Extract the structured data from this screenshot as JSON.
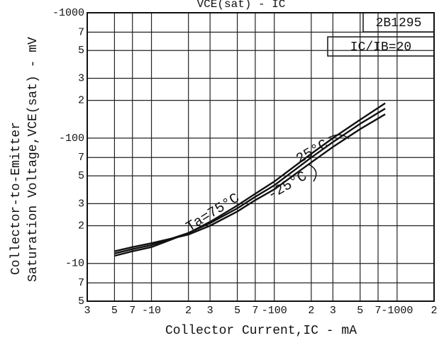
{
  "chart_data": {
    "type": "line",
    "title": "VCE(sat) - IC",
    "xlabel": "Collector Current,IC - mA",
    "ylabel": [
      "Collector-to-Emitter",
      "Saturation Voltage,VCE(sat) - mV"
    ],
    "annotations": [
      "2B1295",
      "IC/IB=20"
    ],
    "x": [
      5,
      7,
      10,
      20,
      30,
      50,
      70,
      100,
      200,
      300,
      500,
      800
    ],
    "series": [
      {
        "name": "Ta=75°C",
        "color": "#111111",
        "values": [
          11.5,
          12.5,
          13.5,
          17.5,
          21.5,
          29,
          36,
          45,
          75,
          100,
          140,
          190
        ]
      },
      {
        "name": "25°C",
        "color": "#111111",
        "values": [
          12,
          13,
          14,
          17.5,
          21,
          27.5,
          34,
          42,
          70,
          93,
          130,
          172
        ]
      },
      {
        "name": "-25°C",
        "color": "#111111",
        "values": [
          12.5,
          13.5,
          14.5,
          17,
          20,
          26,
          32,
          39,
          64,
          85,
          118,
          155
        ]
      }
    ],
    "log_x": true,
    "log_y": true,
    "grid": true,
    "xlim": [
      3,
      2000
    ],
    "xticks": [
      3,
      5,
      7,
      {
        "value": 10,
        "label": "-10"
      },
      {
        "value": 20,
        "label": "2"
      },
      {
        "value": 30,
        "label": "3"
      },
      {
        "value": 50,
        "label": "5"
      },
      {
        "value": 70,
        "label": "7"
      },
      {
        "value": 100,
        "label": "-100"
      },
      {
        "value": 200,
        "label": "2"
      },
      {
        "value": 300,
        "label": "3"
      },
      {
        "value": 500,
        "label": "5"
      },
      {
        "value": 700,
        "label": "7"
      },
      {
        "value": 1000,
        "label": "-1000"
      },
      {
        "value": 2000,
        "label": "2"
      }
    ],
    "ylim": [
      5,
      1000
    ],
    "yticks": [
      5,
      7,
      {
        "value": 10,
        "label": "-10"
      },
      {
        "value": 20,
        "label": "2"
      },
      {
        "value": 30,
        "label": "3"
      },
      {
        "value": 50,
        "label": "5"
      },
      {
        "value": 70,
        "label": "7"
      },
      {
        "value": 100,
        "label": "-100"
      },
      {
        "value": 200,
        "label": "2"
      },
      {
        "value": 300,
        "label": "3"
      },
      {
        "value": 500,
        "label": "5"
      },
      {
        "value": 700,
        "label": "7"
      },
      {
        "value": 1000,
        "label": "-1000"
      }
    ]
  }
}
